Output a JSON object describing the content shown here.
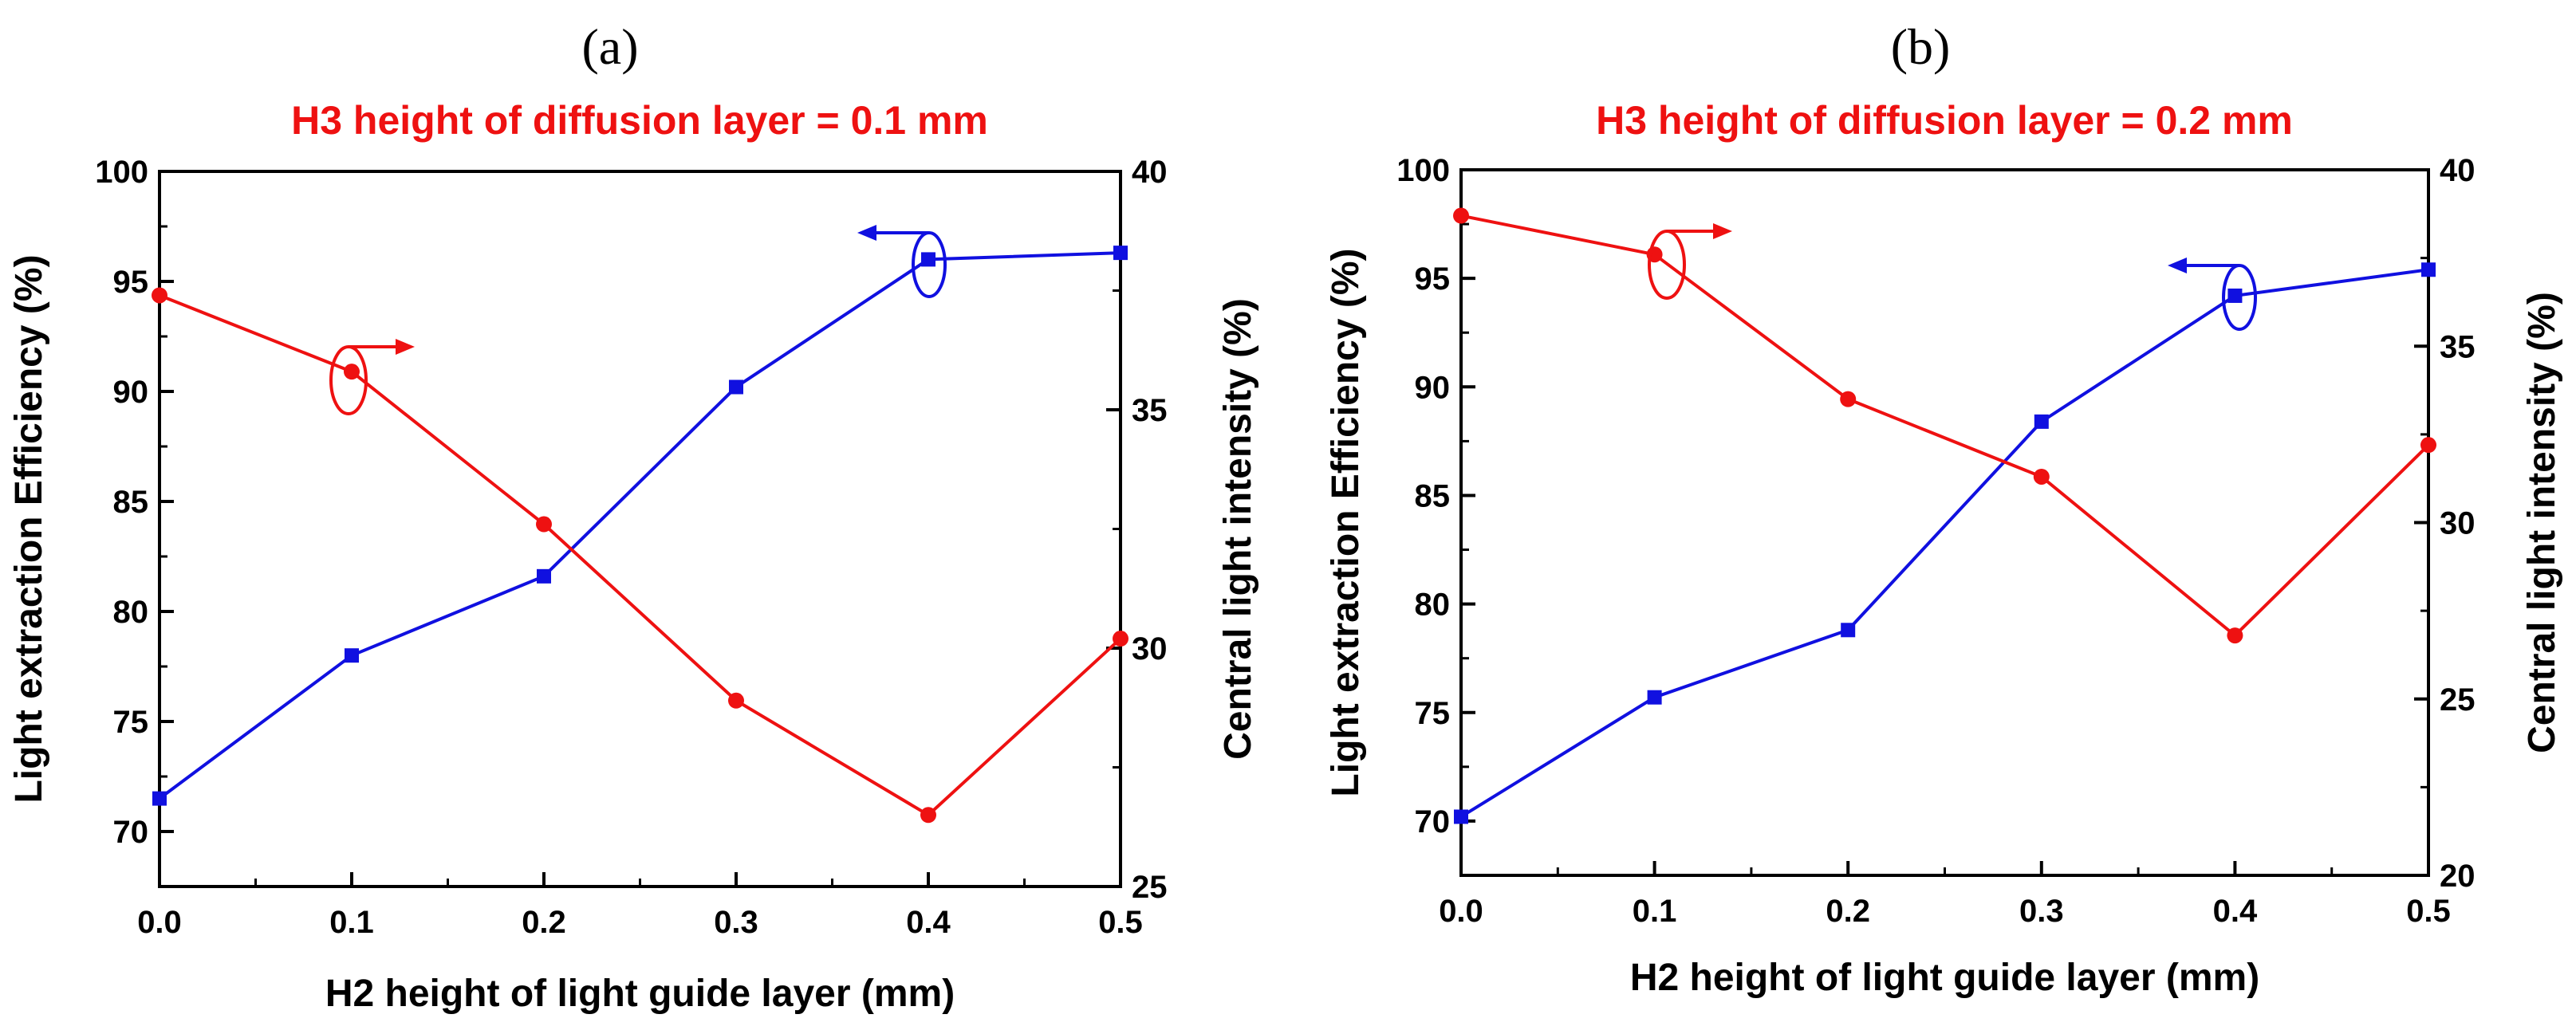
{
  "chart_data": [
    {
      "type": "line",
      "panel_label": "(a)",
      "title": "H3 height of diffusion layer = 0.1 mm",
      "xlabel": "H2 height of light guide layer (mm)",
      "ylabel_left": "Light extraction Efficiency (%)",
      "ylabel_right": "Central light intensity (%)",
      "xlim": [
        0,
        0.5
      ],
      "ylim_left": [
        67.5,
        100
      ],
      "ylim_right": [
        25,
        40
      ],
      "x_ticks": [
        "0.0",
        "0.1",
        "0.2",
        "0.3",
        "0.4",
        "0.5"
      ],
      "y_left_ticks": [
        "70",
        "75",
        "80",
        "85",
        "90",
        "95",
        "100"
      ],
      "y_right_ticks": [
        "25",
        "30",
        "35",
        "40"
      ],
      "x": [
        0.0,
        0.1,
        0.2,
        0.3,
        0.4,
        0.5
      ],
      "series": [
        {
          "name": "Light extraction Efficiency",
          "axis": "left",
          "marker": "square",
          "color": "#1010e0",
          "values": [
            71.5,
            78.0,
            81.6,
            90.2,
            96.0,
            96.3
          ]
        },
        {
          "name": "Central light intensity",
          "axis": "right",
          "marker": "circle",
          "color": "#ee1111",
          "values": [
            37.4,
            35.8,
            32.6,
            28.9,
            26.5,
            30.2
          ]
        }
      ]
    },
    {
      "type": "line",
      "panel_label": "(b)",
      "title": "H3 height of diffusion layer = 0.2 mm",
      "xlabel": "H2 height of light guide layer (mm)",
      "ylabel_left": "Light extraction Efficiency (%)",
      "ylabel_right": "Central light intensity (%)",
      "xlim": [
        0,
        0.5
      ],
      "ylim_left": [
        67.5,
        100
      ],
      "ylim_right": [
        20,
        40
      ],
      "x_ticks": [
        "0.0",
        "0.1",
        "0.2",
        "0.3",
        "0.4",
        "0.5"
      ],
      "y_left_ticks": [
        "70",
        "75",
        "80",
        "85",
        "90",
        "95",
        "100"
      ],
      "y_right_ticks": [
        "20",
        "25",
        "30",
        "35",
        "40"
      ],
      "x": [
        0.0,
        0.1,
        0.2,
        0.3,
        0.4,
        0.5
      ],
      "series": [
        {
          "name": "Light extraction Efficiency",
          "axis": "left",
          "marker": "square",
          "color": "#1010e0",
          "values": [
            70.2,
            75.7,
            78.8,
            88.4,
            94.2,
            95.4
          ]
        },
        {
          "name": "Central light intensity",
          "axis": "right",
          "marker": "circle",
          "color": "#ee1111",
          "values": [
            38.7,
            37.6,
            33.5,
            31.3,
            26.8,
            32.2
          ]
        }
      ]
    }
  ]
}
